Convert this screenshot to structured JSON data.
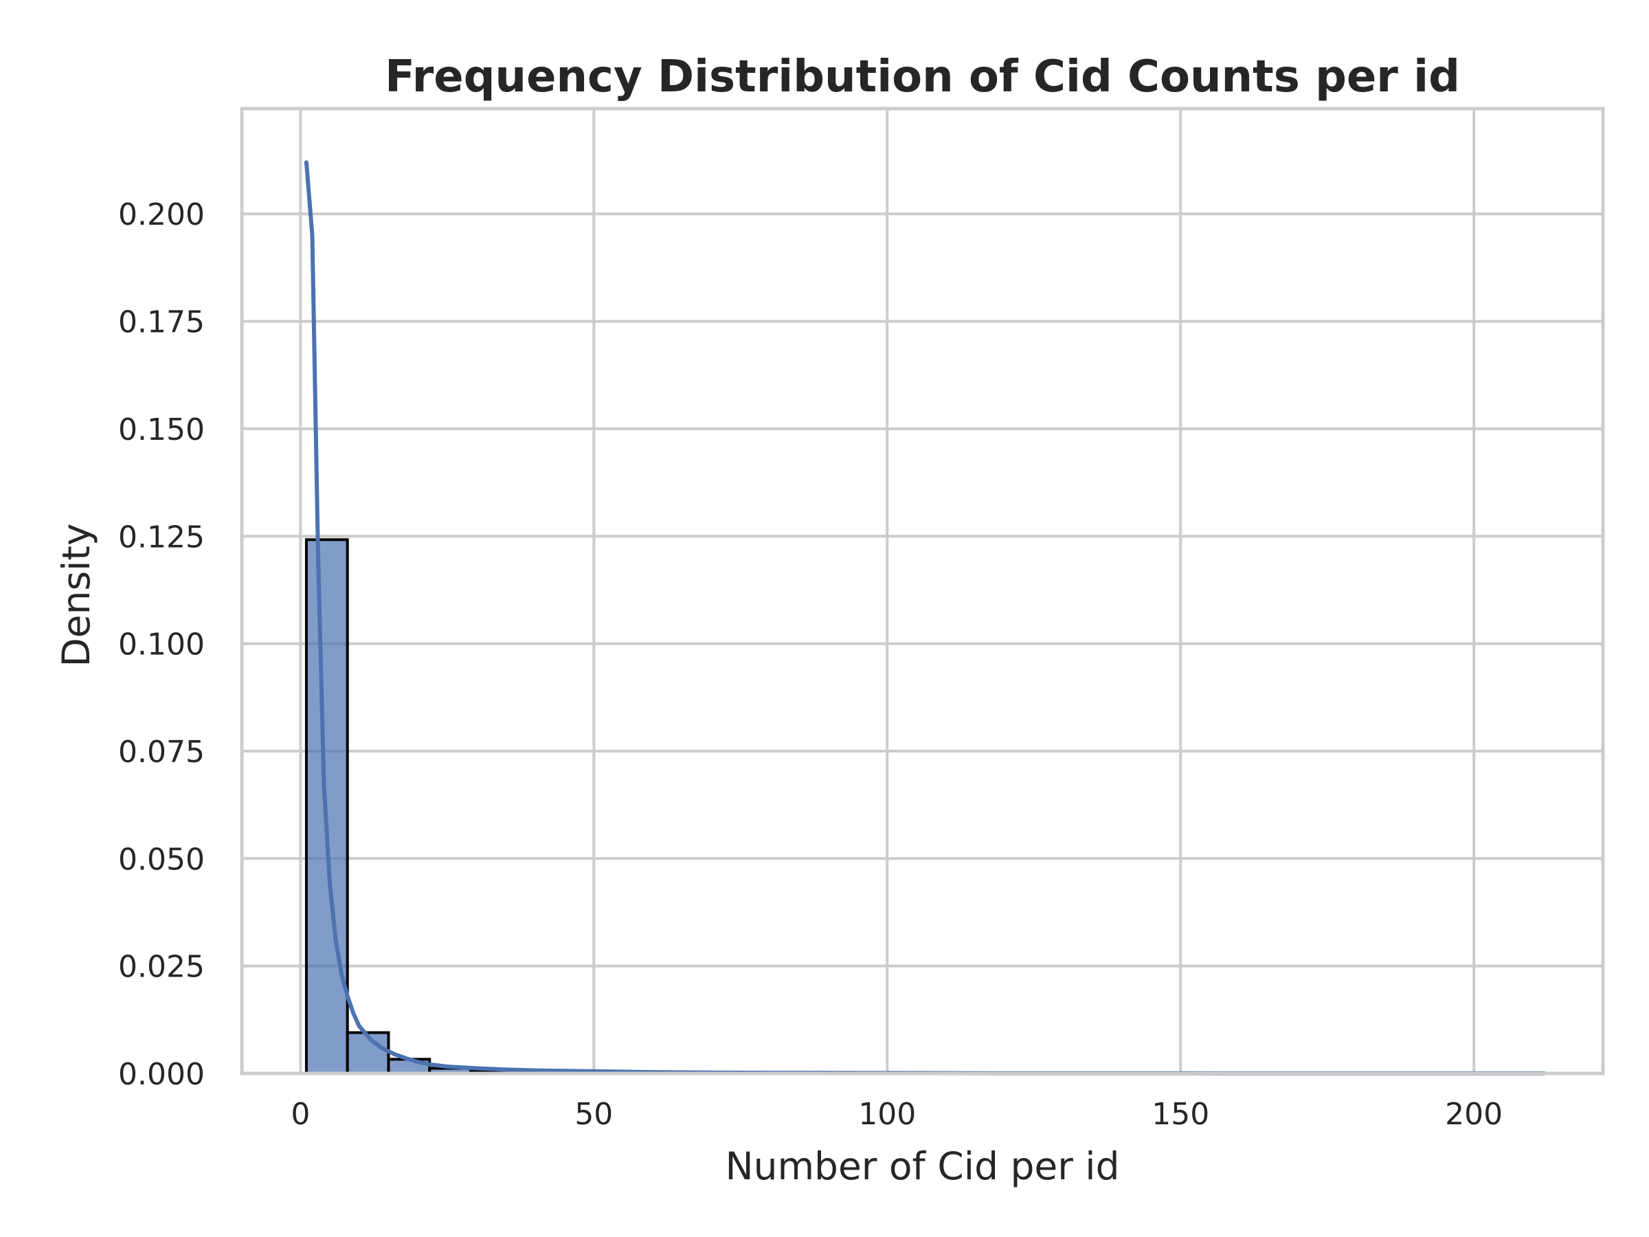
{
  "chart_data": {
    "type": "bar",
    "subtype": "histogram-with-kde",
    "title": "Frequency Distribution of Cid Counts per id",
    "xlabel": "Number of Cid per id",
    "ylabel": "Density",
    "xlim": [
      -10,
      222
    ],
    "ylim": [
      0,
      0.2245
    ],
    "x_ticks": [
      0,
      50,
      100,
      150,
      200
    ],
    "x_tick_labels": [
      "0",
      "50",
      "100",
      "150",
      "200"
    ],
    "y_ticks": [
      0,
      0.025,
      0.05,
      0.075,
      0.1,
      0.125,
      0.15,
      0.175,
      0.2
    ],
    "y_tick_labels": [
      "0.000",
      "0.025",
      "0.050",
      "0.075",
      "0.100",
      "0.125",
      "0.150",
      "0.175",
      "0.200"
    ],
    "grid": true,
    "legend": "none",
    "colors": {
      "bar_fill": "#4c72b0",
      "bar_fill_opacity": 0.7,
      "bar_edge": "#000000",
      "kde_line": "#4c72b0",
      "grid": "#cccccc",
      "spine": "#cccccc"
    },
    "bins": [
      {
        "x0": 1,
        "x1": 8,
        "density": 0.1242
      },
      {
        "x0": 8,
        "x1": 15,
        "density": 0.0095
      },
      {
        "x0": 15,
        "x1": 22,
        "density": 0.0033
      },
      {
        "x0": 22,
        "x1": 29,
        "density": 0.0012
      },
      {
        "x0": 29,
        "x1": 36,
        "density": 0.0007
      },
      {
        "x0": 36,
        "x1": 43,
        "density": 0.0004
      },
      {
        "x0": 43,
        "x1": 50,
        "density": 0.0003
      },
      {
        "x0": 50,
        "x1": 57,
        "density": 0.0002
      },
      {
        "x0": 57,
        "x1": 64,
        "density": 0.0001
      },
      {
        "x0": 64,
        "x1": 71,
        "density": 0.0001
      },
      {
        "x0": 71,
        "x1": 78,
        "density": 0.0001
      },
      {
        "x0": 78,
        "x1": 85,
        "density": 5e-05
      },
      {
        "x0": 85,
        "x1": 92,
        "density": 4e-05
      },
      {
        "x0": 92,
        "x1": 99,
        "density": 3e-05
      },
      {
        "x0": 99,
        "x1": 106,
        "density": 2e-05
      },
      {
        "x0": 106,
        "x1": 113,
        "density": 2e-05
      },
      {
        "x0": 113,
        "x1": 120,
        "density": 1e-05
      },
      {
        "x0": 120,
        "x1": 127,
        "density": 1e-05
      },
      {
        "x0": 127,
        "x1": 134,
        "density": 1e-05
      },
      {
        "x0": 134,
        "x1": 141,
        "density": 1e-05
      },
      {
        "x0": 141,
        "x1": 148,
        "density": 1e-05
      },
      {
        "x0": 148,
        "x1": 155,
        "density": 1e-05
      },
      {
        "x0": 155,
        "x1": 162,
        "density": 1e-05
      },
      {
        "x0": 162,
        "x1": 169,
        "density": 1e-05
      },
      {
        "x0": 169,
        "x1": 176,
        "density": 1e-05
      },
      {
        "x0": 176,
        "x1": 183,
        "density": 1e-05
      },
      {
        "x0": 183,
        "x1": 190,
        "density": 1e-05
      },
      {
        "x0": 190,
        "x1": 197,
        "density": 1e-05
      },
      {
        "x0": 197,
        "x1": 204,
        "density": 1e-05
      },
      {
        "x0": 204,
        "x1": 212,
        "density": 1e-05
      }
    ],
    "kde": {
      "x": [
        1,
        2,
        3,
        4,
        5,
        6,
        7,
        8,
        9,
        10,
        12,
        14,
        16,
        18,
        20,
        22,
        25,
        30,
        35,
        40,
        50,
        60,
        70,
        80,
        100,
        120,
        150,
        180,
        212
      ],
      "y": [
        0.212,
        0.195,
        0.12,
        0.067,
        0.044,
        0.031,
        0.023,
        0.018,
        0.014,
        0.011,
        0.0078,
        0.0058,
        0.0045,
        0.0035,
        0.0027,
        0.0021,
        0.0016,
        0.0012,
        0.0009,
        0.0007,
        0.0005,
        0.0003,
        0.0002,
        0.00015,
        0.0001,
        5e-05,
        3e-05,
        2e-05,
        1e-05
      ]
    }
  }
}
